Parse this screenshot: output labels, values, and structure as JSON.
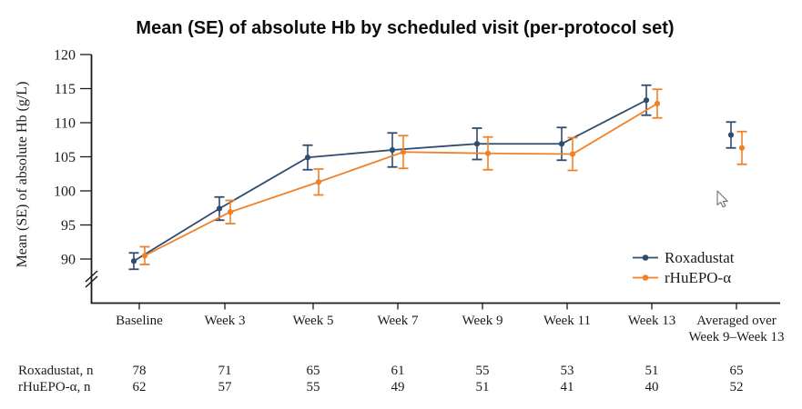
{
  "chart_data": {
    "type": "line",
    "title": "Mean (SE) of absolute Hb by scheduled visit (per-protocol set)",
    "ylabel": "Mean (SE) of absolute Hb (g/L)",
    "xlabel": "",
    "grid": false,
    "legend_position": "lower right",
    "y_axis_break_below": 90,
    "yticks": [
      90,
      95,
      100,
      105,
      110,
      115,
      120
    ],
    "ylim": [
      87,
      120
    ],
    "categories": [
      "Baseline",
      "Week 3",
      "Week 5",
      "Week 7",
      "Week 9",
      "Week 11",
      "Week 13",
      "Averaged over\nWeek 9–Week 13"
    ],
    "connected_points": 7,
    "series": [
      {
        "name": "Roxadustat",
        "color": "#2e4c6e",
        "means": [
          89.7,
          97.4,
          104.9,
          106.0,
          106.9,
          106.9,
          113.3,
          108.2
        ],
        "se": [
          1.2,
          1.7,
          1.8,
          2.5,
          2.3,
          2.4,
          2.2,
          1.9
        ]
      },
      {
        "name": "rHuEPO-α",
        "color": "#ef8229",
        "means": [
          90.5,
          96.9,
          101.3,
          105.7,
          105.5,
          105.4,
          112.8,
          106.3
        ],
        "se": [
          1.3,
          1.7,
          1.9,
          2.4,
          2.4,
          2.4,
          2.1,
          2.4
        ]
      }
    ]
  },
  "table": {
    "rows": [
      {
        "label": "Roxadustat, n",
        "values": [
          "78",
          "71",
          "65",
          "61",
          "55",
          "53",
          "51",
          "65"
        ]
      },
      {
        "label": "rHuEPO-α, n",
        "values": [
          "62",
          "57",
          "55",
          "49",
          "51",
          "41",
          "40",
          "52"
        ]
      }
    ]
  }
}
